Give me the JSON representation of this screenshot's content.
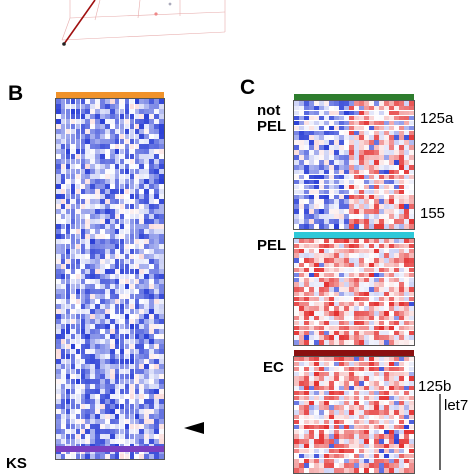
{
  "panels": {
    "b": {
      "letter": "B"
    },
    "c": {
      "letter": "C"
    }
  },
  "groups": {
    "ks": "KS",
    "not_pel": [
      "not",
      "PEL"
    ],
    "pel": "PEL",
    "ec": "EC"
  },
  "mirna_labels": {
    "m125a": "125a",
    "m222": "222",
    "m155": "155",
    "m125b": "125b",
    "let7": "let7"
  },
  "colors": {
    "low": "#2a3fd6",
    "high": "#e01818",
    "mid": "#ffffff",
    "header_orange": "#f0922a",
    "header_green": "#2e7d2e",
    "header_cyan": "#2ec8d8",
    "header_darkred": "#8a1010",
    "header_purple": "#7a3fc0"
  }
}
